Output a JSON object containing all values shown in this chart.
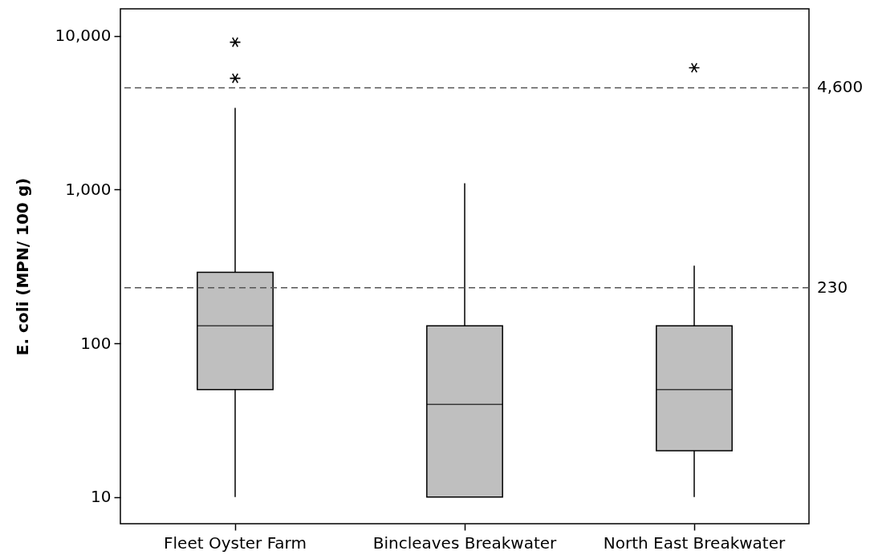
{
  "chart_data": {
    "type": "box",
    "ylabel": "E. coli (MPN/ 100 g)",
    "categories": [
      "Fleet Oyster Farm",
      "Bincleaves Breakwater",
      "North East Breakwater"
    ],
    "series": [
      {
        "color": "#bfbfbf",
        "boxes": [
          {
            "low": 10,
            "q1": 50,
            "median": 130,
            "q3": 290,
            "high": 3400,
            "outliers": [
              5300,
              9100
            ]
          },
          {
            "low": 10,
            "q1": 10,
            "median": 40,
            "q3": 130,
            "high": 1100
          },
          {
            "low": 10,
            "q1": 20,
            "median": 50,
            "q3": 130,
            "high": 320,
            "outliers": [
              6200
            ]
          }
        ]
      }
    ],
    "log": true,
    "ylim": [
      6.7,
      15000
    ],
    "yticks": [
      10,
      100,
      {
        "value": 1000,
        "label": "1,000"
      },
      {
        "value": 10000,
        "label": "10,000"
      }
    ],
    "ref_lines": [
      {
        "axis": "y",
        "value": 4600,
        "label": "4,600",
        "color": "#555555",
        "line_style": "dashed"
      },
      {
        "axis": "y",
        "value": 230,
        "label": "230",
        "color": "#555555",
        "line_style": "dashed"
      }
    ],
    "grid": false
  }
}
